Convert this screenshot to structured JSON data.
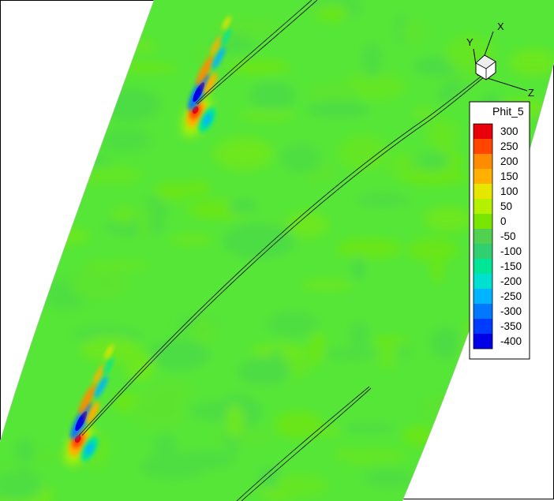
{
  "chart_data": {
    "type": "heatmap",
    "variable": "Phit_5",
    "legend": {
      "title": "Phit_5",
      "levels": [
        300,
        250,
        200,
        150,
        100,
        50,
        0,
        -50,
        -100,
        -150,
        -200,
        -250,
        -300,
        -350,
        -400
      ],
      "colors": [
        "#e8000b",
        "#ff4500",
        "#ff8c00",
        "#ffb000",
        "#e6e600",
        "#b4f000",
        "#78e600",
        "#50d250",
        "#30d070",
        "#00e696",
        "#00e0d0",
        "#00b4ff",
        "#0078ff",
        "#003cff",
        "#0000e6"
      ],
      "placement": "right"
    },
    "orientation_axes": [
      "X",
      "Y",
      "Z"
    ],
    "background_value": 0,
    "features": [
      {
        "kind": "wake-dipole",
        "peak_max": 300,
        "peak_min": -400,
        "location": "upper blade trailing edge"
      },
      {
        "kind": "wake-dipole",
        "peak_max": 300,
        "peak_min": -400,
        "location": "lower blade trailing edge"
      }
    ],
    "grid": false
  }
}
